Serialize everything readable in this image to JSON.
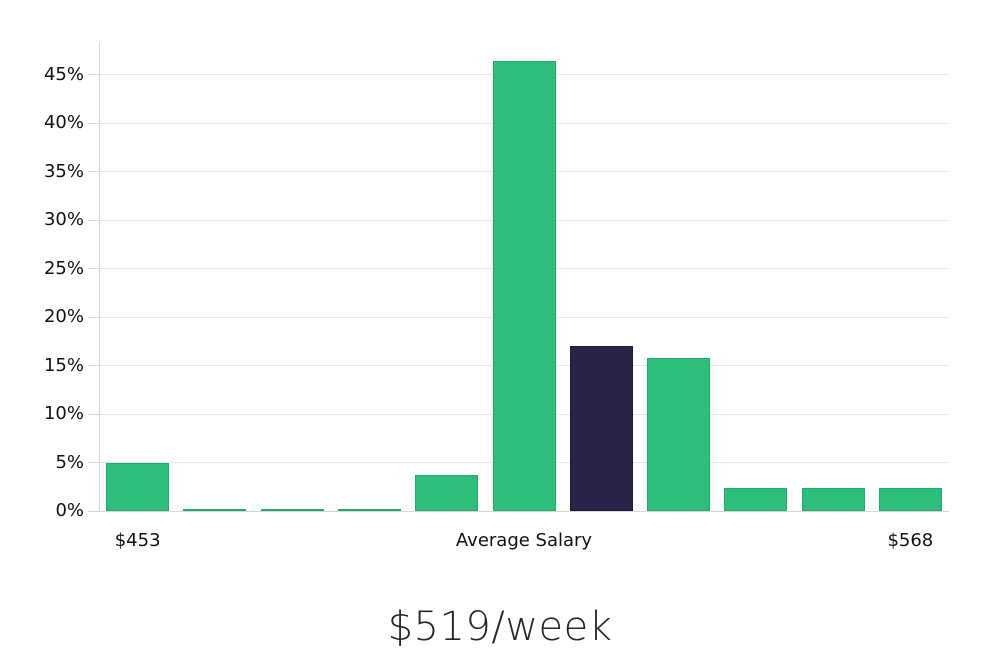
{
  "chart_data": {
    "type": "bar",
    "title": "$519/week",
    "values": [
      5.0,
      0.2,
      0.2,
      0.2,
      3.7,
      46.4,
      17.0,
      15.8,
      2.4,
      2.4,
      2.4
    ],
    "value_unit": "percent",
    "highlight_index": 6,
    "colors": {
      "bar": "#2ebe7c",
      "bar_border": "#26a96d",
      "highlight": "#282449",
      "highlight_border": "#1e1b38",
      "gridline": "#e7e7e7",
      "axis": "#d6d6d6",
      "label_text": "#111111"
    },
    "y_ticks": [
      "0%",
      "5%",
      "10%",
      "15%",
      "20%",
      "25%",
      "30%",
      "35%",
      "40%",
      "45%"
    ],
    "ylim": [
      0,
      48.4
    ],
    "grid": "horizontal",
    "legend": "none",
    "x_axis_labels": [
      {
        "text": "$453",
        "bar_index": 0
      },
      {
        "text": "Average Salary",
        "bar_index": 5
      },
      {
        "text": "$568",
        "bar_index": 10
      }
    ]
  }
}
